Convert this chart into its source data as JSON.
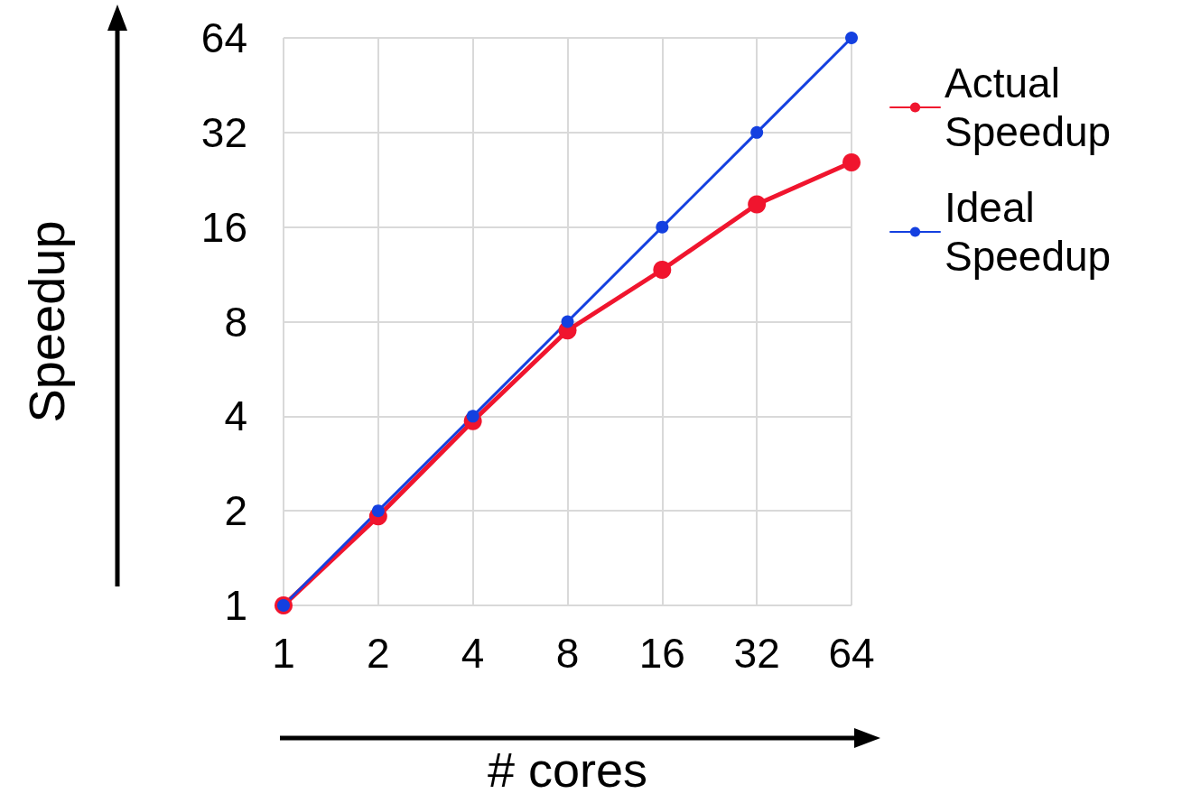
{
  "chart_data": {
    "type": "line",
    "xlabel": "# cores",
    "ylabel": "Speedup",
    "x": [
      1,
      2,
      4,
      8,
      16,
      32,
      64
    ],
    "series": [
      {
        "name": "Actual Speedup",
        "color": "#f0152e",
        "values": [
          1,
          1.92,
          3.86,
          7.5,
          11.7,
          18.9,
          25.7
        ]
      },
      {
        "name": "Ideal Speedup",
        "color": "#1440e0",
        "values": [
          1,
          2,
          4,
          8,
          16,
          32,
          64
        ]
      }
    ],
    "xlim": [
      1,
      64
    ],
    "xticks": [
      1,
      2,
      4,
      8,
      16,
      32,
      64
    ],
    "ylim": [
      1,
      64
    ],
    "yticks": [
      1,
      2,
      4,
      8,
      16,
      32,
      64
    ],
    "log": "xy",
    "grid": true,
    "legend": "right",
    "marker": "circle",
    "line_style": "solid"
  }
}
